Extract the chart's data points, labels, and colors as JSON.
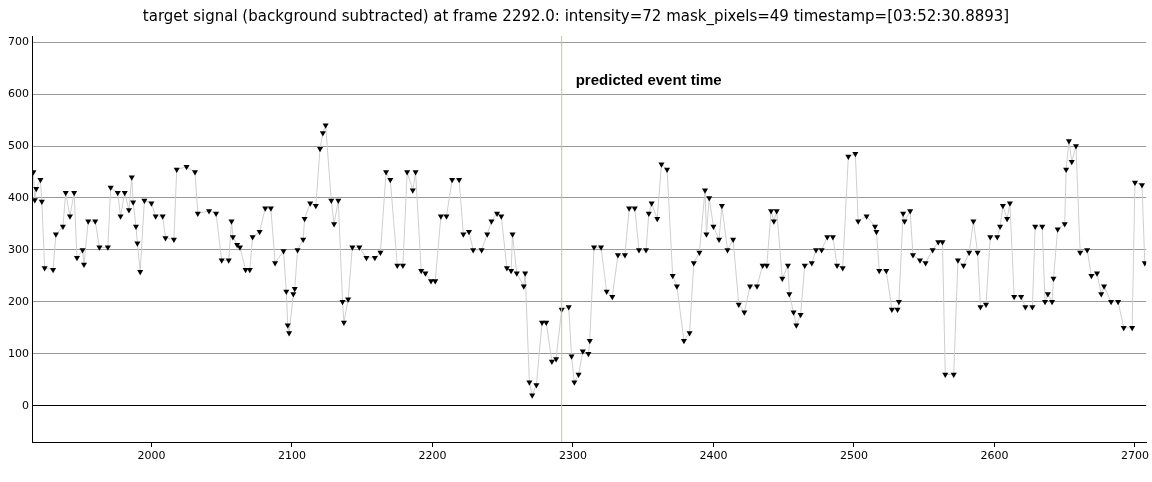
{
  "chart_data": {
    "type": "line",
    "title": "target signal (background subtracted) at frame 2292.0: intensity=72 mask_pixels=49 timestamp=[03:52:30.8893]",
    "xlim": [
      1915,
      2708
    ],
    "ylim": [
      -70,
      712
    ],
    "xticks": [
      2000,
      2100,
      2200,
      2300,
      2400,
      2500,
      2600,
      2700
    ],
    "yticks": [
      0,
      100,
      200,
      300,
      400,
      500,
      600,
      700
    ],
    "grid": "y",
    "legend": false,
    "marker": "triangle",
    "line_style": "solid",
    "ref_lines": [
      {
        "axis": "x",
        "value": 2292,
        "label": "predicted event time",
        "color": "#c8c88c"
      }
    ],
    "series": [
      {
        "color": "#000000",
        "x": [
          1916,
          1917,
          1918,
          1921,
          1922,
          1924,
          1930,
          1932,
          1937,
          1939,
          1942,
          1945,
          1947,
          1951,
          1952,
          1955,
          1960,
          1963,
          1969,
          1971,
          1976,
          1978,
          1981,
          1984,
          1986,
          1987,
          1989,
          1990,
          1992,
          1995,
          2000,
          2003,
          2008,
          2010,
          2016,
          2018,
          2025,
          2031,
          2033,
          2041,
          2046,
          2050,
          2055,
          2057,
          2058,
          2061,
          2063,
          2067,
          2070,
          2072,
          2077,
          2081,
          2085,
          2088,
          2094,
          2096,
          2097,
          2098,
          2101,
          2102,
          2104,
          2108,
          2109,
          2113,
          2117,
          2120,
          2122,
          2124,
          2128,
          2130,
          2133,
          2136,
          2137,
          2140,
          2143,
          2148,
          2153,
          2159,
          2163,
          2167,
          2170,
          2175,
          2179,
          2182,
          2186,
          2188,
          2192,
          2195,
          2199,
          2202,
          2206,
          2210,
          2214,
          2219,
          2222,
          2226,
          2229,
          2235,
          2239,
          2242,
          2246,
          2249,
          2253,
          2256,
          2257,
          2260,
          2265,
          2266,
          2269,
          2271,
          2274,
          2278,
          2281,
          2285,
          2288,
          2292,
          2297,
          2299,
          2301,
          2304,
          2307,
          2311,
          2312,
          2315,
          2320,
          2324,
          2328,
          2332,
          2337,
          2340,
          2344,
          2347,
          2352,
          2354,
          2356,
          2360,
          2363,
          2367,
          2371,
          2374,
          2379,
          2383,
          2386,
          2390,
          2394,
          2395,
          2397,
          2400,
          2404,
          2406,
          2410,
          2414,
          2418,
          2422,
          2426,
          2431,
          2435,
          2438,
          2441,
          2443,
          2445,
          2449,
          2453,
          2454,
          2457,
          2459,
          2462,
          2465,
          2470,
          2473,
          2477,
          2481,
          2485,
          2488,
          2492,
          2496,
          2501,
          2503,
          2509,
          2515,
          2516,
          2518,
          2523,
          2527,
          2531,
          2532,
          2535,
          2536,
          2540,
          2542,
          2547,
          2551,
          2556,
          2560,
          2563,
          2565,
          2571,
          2574,
          2578,
          2582,
          2585,
          2588,
          2590,
          2594,
          2597,
          2602,
          2604,
          2606,
          2609,
          2611,
          2614,
          2619,
          2622,
          2627,
          2629,
          2634,
          2636,
          2638,
          2641,
          2642,
          2645,
          2650,
          2651,
          2653,
          2655,
          2658,
          2661,
          2666,
          2669,
          2673,
          2676,
          2678,
          2683,
          2688,
          2692,
          2698,
          2700,
          2705,
          2707
        ],
        "values": [
          450,
          396,
          418,
          435,
          393,
          265,
          262,
          330,
          345,
          410,
          365,
          410,
          285,
          300,
          272,
          355,
          355,
          305,
          305,
          420,
          410,
          365,
          410,
          377,
          440,
          392,
          345,
          313,
          258,
          395,
          390,
          365,
          365,
          323,
          320,
          455,
          460,
          450,
          370,
          375,
          370,
          280,
          280,
          355,
          325,
          310,
          305,
          262,
          262,
          325,
          335,
          380,
          380,
          275,
          298,
          220,
          155,
          140,
          215,
          225,
          300,
          320,
          360,
          390,
          385,
          495,
          525,
          540,
          395,
          350,
          395,
          200,
          160,
          205,
          305,
          305,
          285,
          285,
          295,
          450,
          435,
          270,
          270,
          450,
          415,
          450,
          260,
          255,
          240,
          240,
          365,
          365,
          435,
          435,
          330,
          335,
          300,
          300,
          330,
          355,
          370,
          365,
          265,
          260,
          330,
          255,
          230,
          255,
          45,
          20,
          40,
          160,
          160,
          85,
          90,
          185,
          190,
          95,
          45,
          60,
          105,
          100,
          125,
          305,
          305,
          220,
          210,
          290,
          290,
          380,
          380,
          300,
          300,
          370,
          390,
          360,
          465,
          455,
          250,
          230,
          125,
          140,
          275,
          295,
          415,
          330,
          400,
          345,
          320,
          385,
          300,
          320,
          195,
          180,
          230,
          230,
          270,
          270,
          375,
          355,
          375,
          245,
          270,
          215,
          180,
          155,
          175,
          270,
          275,
          300,
          300,
          325,
          325,
          270,
          265,
          480,
          485,
          355,
          365,
          345,
          335,
          260,
          260,
          185,
          185,
          200,
          370,
          355,
          375,
          290,
          280,
          275,
          300,
          315,
          315,
          60,
          60,
          280,
          270,
          295,
          355,
          295,
          190,
          195,
          325,
          325,
          345,
          385,
          360,
          390,
          210,
          210,
          190,
          190,
          345,
          345,
          200,
          215,
          200,
          245,
          340,
          350,
          455,
          510,
          470,
          500,
          295,
          300,
          250,
          255,
          215,
          230,
          200,
          200,
          150,
          150,
          430,
          425,
          275
        ]
      }
    ]
  }
}
